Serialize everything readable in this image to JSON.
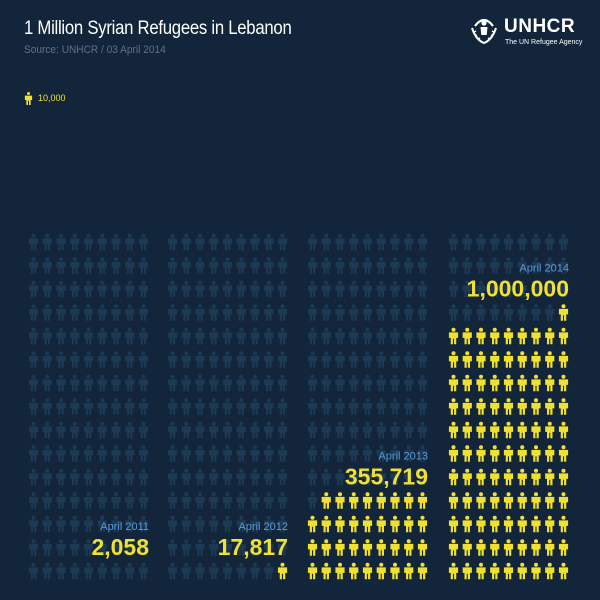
{
  "header": {
    "title": "1 Million Syrian Refugees in Lebanon",
    "source": "Source: UNHCR / 03 April 2014"
  },
  "logo": {
    "name": "UNHCR",
    "tagline": "The UN Refugee Agency",
    "icon": "unhcr-emblem-icon"
  },
  "legend": {
    "icon": "person-icon",
    "label": "10,000"
  },
  "colors": {
    "background": "#13253a",
    "filled_person": "#f0e032",
    "empty_person": "#1d3a55",
    "date_label": "#5b9bd5",
    "value_label": "#f0e032"
  },
  "chart_data": {
    "type": "pictograph",
    "title": "1 Million Syrian Refugees in Lebanon",
    "unit_per_icon": 10000,
    "categories": [
      "April 2011",
      "April 2012",
      "April 2013",
      "April 2014"
    ],
    "values": [
      2058,
      17817,
      355719,
      1000000
    ],
    "value_labels": [
      "2,058",
      "17,817",
      "355,719",
      "1,000,000"
    ],
    "series": [
      {
        "values": [
          2058,
          17817,
          355719,
          1000000
        ]
      }
    ]
  }
}
